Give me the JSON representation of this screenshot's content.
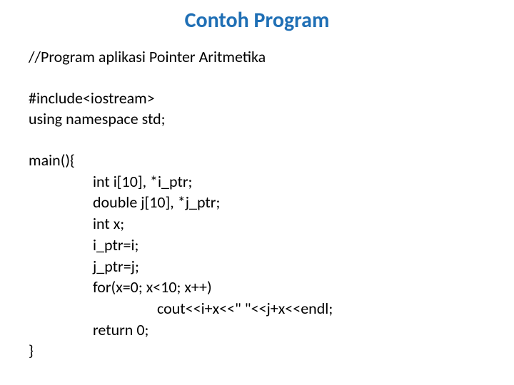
{
  "title": {
    "text": "Contoh Program",
    "color": "#1f6fb5",
    "fontsize": 30,
    "fontweight": "bold"
  },
  "code": {
    "color": "#000000",
    "fontsize": 22,
    "lines": [
      {
        "text": "//Program aplikasi Pointer Aritmetika",
        "indent": 0
      },
      {
        "text": "",
        "indent": 0,
        "blank": true
      },
      {
        "text": "#include<iostream>",
        "indent": 0
      },
      {
        "text": "using namespace std;",
        "indent": 0
      },
      {
        "text": "",
        "indent": 0,
        "blank": true
      },
      {
        "text": "main(){",
        "indent": 0
      },
      {
        "text": "int i[10], *i_ptr;",
        "indent": 1
      },
      {
        "text": "double j[10], *j_ptr;",
        "indent": 1
      },
      {
        "text": "int x;",
        "indent": 1
      },
      {
        "text": "i_ptr=i;",
        "indent": 1
      },
      {
        "text": "j_ptr=j;",
        "indent": 1
      },
      {
        "text": "for(x=0; x<10; x++)",
        "indent": 1
      },
      {
        "text": "cout<<i+x<<\" \"<<j+x<<endl;",
        "indent": 2
      },
      {
        "text": "return 0;",
        "indent": 1
      },
      {
        "text": "}",
        "indent": 0
      }
    ]
  },
  "background_color": "#ffffff"
}
